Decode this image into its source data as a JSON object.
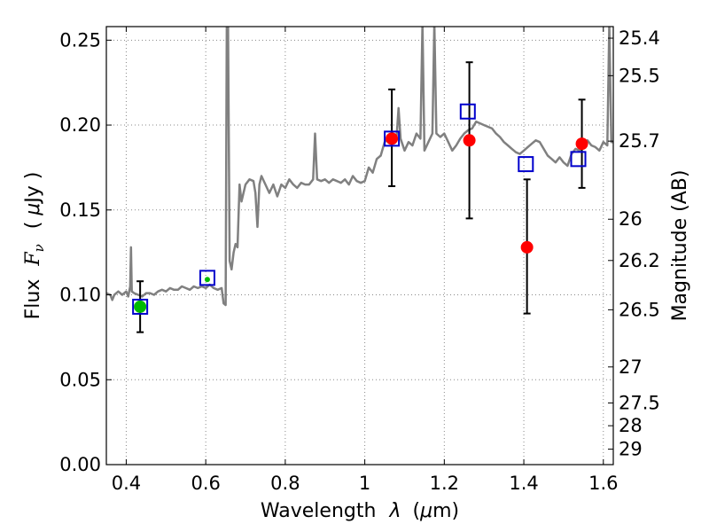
{
  "chart_data": {
    "type": "scatter",
    "title": "",
    "xlabel": "Wavelength  λ (μm)",
    "ylabel_left": "Flux  F_ν  ( μJy )",
    "ylabel_left_parts": [
      "Flux",
      "F",
      "ν",
      "( ",
      "μ",
      "Jy )"
    ],
    "xlabel_parts": [
      "Wavelength",
      "λ",
      "(",
      "μ",
      "m)"
    ],
    "ylabel_right": "Magnitude (AB)",
    "xlim": [
      0.35,
      1.625
    ],
    "ylim": [
      0.0,
      0.258
    ],
    "grid": true,
    "x_ticks": [
      "0.4",
      "0.6",
      "0.8",
      "1",
      "1.2",
      "1.4",
      "1.6"
    ],
    "y_ticks": [
      "0.00",
      "0.05",
      "0.10",
      "0.15",
      "0.20",
      "0.25"
    ],
    "right_ticks": [
      "25.4",
      "25.5",
      "25.7",
      "26",
      "26.2",
      "26.5",
      "27",
      "27.5",
      "28",
      "29"
    ],
    "colors": {
      "spectrum": "#808080",
      "model_points": "#0000cc",
      "observed_points": "#ff0000",
      "optical_points": "#00bb00",
      "errorbars": "#000000"
    },
    "series": [
      {
        "values": [
          [
            0.35,
            0.101
          ],
          [
            0.36,
            0.1
          ],
          [
            0.365,
            0.097
          ],
          [
            0.37,
            0.1
          ],
          [
            0.38,
            0.102
          ],
          [
            0.39,
            0.1
          ],
          [
            0.4,
            0.102
          ],
          [
            0.405,
            0.099
          ],
          [
            0.41,
            0.105
          ],
          [
            0.412,
            0.128
          ],
          [
            0.414,
            0.102
          ],
          [
            0.42,
            0.101
          ],
          [
            0.43,
            0.1
          ],
          [
            0.44,
            0.099
          ],
          [
            0.45,
            0.101
          ],
          [
            0.46,
            0.101
          ],
          [
            0.47,
            0.1
          ],
          [
            0.48,
            0.102
          ],
          [
            0.49,
            0.103
          ],
          [
            0.5,
            0.102
          ],
          [
            0.51,
            0.104
          ],
          [
            0.52,
            0.103
          ],
          [
            0.53,
            0.103
          ],
          [
            0.54,
            0.105
          ],
          [
            0.55,
            0.104
          ],
          [
            0.56,
            0.103
          ],
          [
            0.57,
            0.105
          ],
          [
            0.58,
            0.104
          ],
          [
            0.59,
            0.105
          ],
          [
            0.6,
            0.104
          ],
          [
            0.61,
            0.106
          ],
          [
            0.62,
            0.104
          ],
          [
            0.63,
            0.103
          ],
          [
            0.64,
            0.104
          ],
          [
            0.645,
            0.095
          ],
          [
            0.65,
            0.094
          ],
          [
            0.653,
            0.26
          ],
          [
            0.656,
            0.26
          ],
          [
            0.66,
            0.12
          ],
          [
            0.665,
            0.115
          ],
          [
            0.67,
            0.125
          ],
          [
            0.675,
            0.13
          ],
          [
            0.68,
            0.128
          ],
          [
            0.685,
            0.165
          ],
          [
            0.69,
            0.155
          ],
          [
            0.7,
            0.165
          ],
          [
            0.71,
            0.168
          ],
          [
            0.72,
            0.167
          ],
          [
            0.725,
            0.16
          ],
          [
            0.73,
            0.14
          ],
          [
            0.735,
            0.165
          ],
          [
            0.74,
            0.17
          ],
          [
            0.75,
            0.165
          ],
          [
            0.76,
            0.16
          ],
          [
            0.77,
            0.165
          ],
          [
            0.78,
            0.158
          ],
          [
            0.79,
            0.165
          ],
          [
            0.8,
            0.163
          ],
          [
            0.81,
            0.168
          ],
          [
            0.82,
            0.165
          ],
          [
            0.83,
            0.163
          ],
          [
            0.84,
            0.166
          ],
          [
            0.85,
            0.165
          ],
          [
            0.86,
            0.165
          ],
          [
            0.87,
            0.168
          ],
          [
            0.875,
            0.195
          ],
          [
            0.88,
            0.168
          ],
          [
            0.89,
            0.167
          ],
          [
            0.9,
            0.168
          ],
          [
            0.91,
            0.166
          ],
          [
            0.92,
            0.168
          ],
          [
            0.93,
            0.167
          ],
          [
            0.94,
            0.166
          ],
          [
            0.95,
            0.168
          ],
          [
            0.96,
            0.165
          ],
          [
            0.97,
            0.17
          ],
          [
            0.98,
            0.167
          ],
          [
            0.99,
            0.166
          ],
          [
            1.0,
            0.167
          ],
          [
            1.01,
            0.175
          ],
          [
            1.02,
            0.172
          ],
          [
            1.03,
            0.18
          ],
          [
            1.04,
            0.182
          ],
          [
            1.05,
            0.19
          ],
          [
            1.06,
            0.192
          ],
          [
            1.07,
            0.195
          ],
          [
            1.08,
            0.193
          ],
          [
            1.085,
            0.21
          ],
          [
            1.09,
            0.192
          ],
          [
            1.1,
            0.185
          ],
          [
            1.11,
            0.19
          ],
          [
            1.12,
            0.188
          ],
          [
            1.13,
            0.195
          ],
          [
            1.14,
            0.192
          ],
          [
            1.145,
            0.26
          ],
          [
            1.15,
            0.185
          ],
          [
            1.16,
            0.19
          ],
          [
            1.17,
            0.195
          ],
          [
            1.175,
            0.26
          ],
          [
            1.18,
            0.195
          ],
          [
            1.19,
            0.193
          ],
          [
            1.2,
            0.195
          ],
          [
            1.21,
            0.19
          ],
          [
            1.22,
            0.185
          ],
          [
            1.23,
            0.188
          ],
          [
            1.24,
            0.192
          ],
          [
            1.25,
            0.195
          ],
          [
            1.26,
            0.197
          ],
          [
            1.27,
            0.198
          ],
          [
            1.28,
            0.202
          ],
          [
            1.29,
            0.201
          ],
          [
            1.3,
            0.2
          ],
          [
            1.31,
            0.199
          ],
          [
            1.32,
            0.198
          ],
          [
            1.33,
            0.195
          ],
          [
            1.34,
            0.193
          ],
          [
            1.35,
            0.19
          ],
          [
            1.36,
            0.188
          ],
          [
            1.37,
            0.186
          ],
          [
            1.38,
            0.184
          ],
          [
            1.39,
            0.183
          ],
          [
            1.4,
            0.185
          ],
          [
            1.41,
            0.187
          ],
          [
            1.42,
            0.189
          ],
          [
            1.43,
            0.191
          ],
          [
            1.44,
            0.19
          ],
          [
            1.45,
            0.186
          ],
          [
            1.46,
            0.182
          ],
          [
            1.47,
            0.18
          ],
          [
            1.48,
            0.178
          ],
          [
            1.49,
            0.181
          ],
          [
            1.5,
            0.178
          ],
          [
            1.51,
            0.176
          ],
          [
            1.52,
            0.183
          ],
          [
            1.53,
            0.186
          ],
          [
            1.54,
            0.185
          ],
          [
            1.55,
            0.188
          ],
          [
            1.56,
            0.191
          ],
          [
            1.57,
            0.188
          ],
          [
            1.58,
            0.187
          ],
          [
            1.59,
            0.185
          ],
          [
            1.6,
            0.19
          ],
          [
            1.61,
            0.188
          ],
          [
            1.615,
            0.26
          ],
          [
            1.62,
            0.19
          ],
          [
            1.625,
            0.19
          ]
        ]
      },
      {
        "values": [
          [
            0.435,
            0.093
          ],
          [
            0.604,
            0.11
          ],
          [
            1.068,
            0.192
          ],
          [
            1.259,
            0.208
          ],
          [
            1.405,
            0.177
          ],
          [
            1.537,
            0.18
          ]
        ]
      },
      {
        "values": [
          [
            1.068,
            0.192
          ],
          [
            1.263,
            0.191
          ],
          [
            1.408,
            0.128
          ],
          [
            1.546,
            0.189
          ]
        ],
        "yerr": [
          [
            0.164,
            0.221
          ],
          [
            0.145,
            0.237
          ],
          [
            0.089,
            0.168
          ],
          [
            0.163,
            0.215
          ]
        ]
      },
      {
        "values": [
          [
            0.435,
            0.093
          ],
          [
            0.604,
            0.109
          ]
        ],
        "yerr": [
          [
            0.078,
            0.108
          ],
          null
        ]
      }
    ]
  }
}
